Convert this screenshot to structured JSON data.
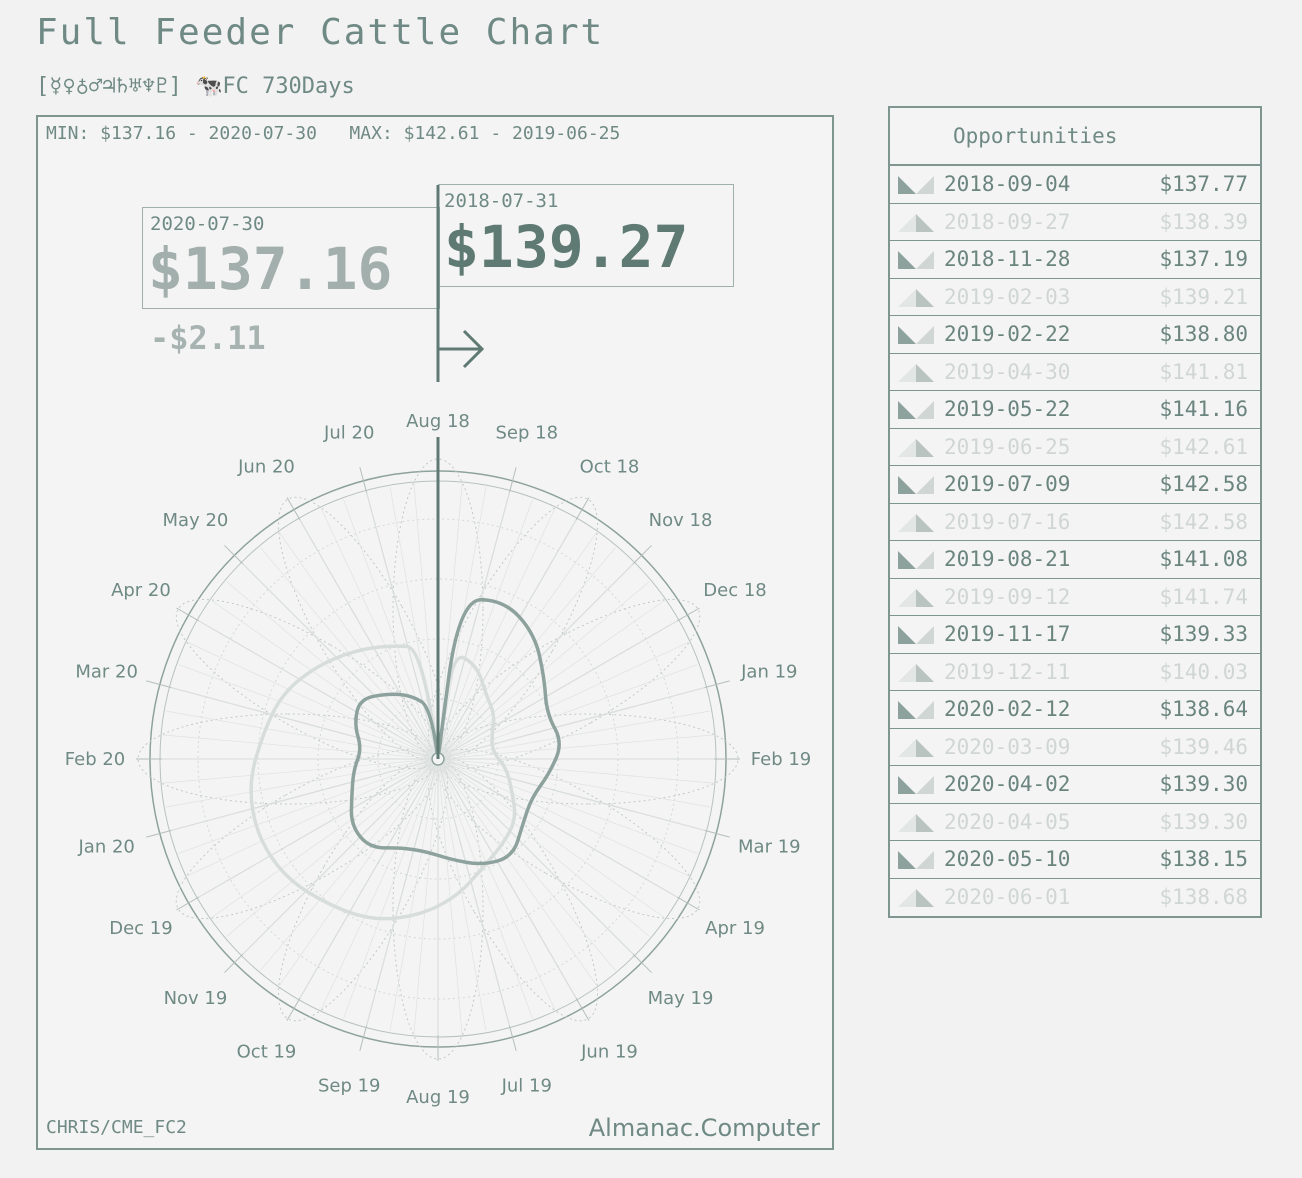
{
  "header": {
    "title": "Full Feeder Cattle Chart",
    "subtitle": "[☿♀♁♂♃♄♅♆♇] 🐄FC 730Days"
  },
  "chart_panel": {
    "minmax": "MIN: $137.16 - 2020-07-30   MAX: $142.61 - 2019-06-25",
    "start": {
      "date": "2018-07-31",
      "price": "$139.27"
    },
    "end": {
      "date": "2020-07-30",
      "price": "$137.16"
    },
    "change": "-$2.11",
    "source": "CHRIS/CME_FC2",
    "brand": "Almanac.Computer"
  },
  "opportunities": {
    "title": "Opportunities",
    "rows": [
      {
        "kind": "buy",
        "date": "2018-09-04",
        "price": "$137.77"
      },
      {
        "kind": "sell",
        "date": "2018-09-27",
        "price": "$138.39"
      },
      {
        "kind": "buy",
        "date": "2018-11-28",
        "price": "$137.19"
      },
      {
        "kind": "sell",
        "date": "2019-02-03",
        "price": "$139.21"
      },
      {
        "kind": "buy",
        "date": "2019-02-22",
        "price": "$138.80"
      },
      {
        "kind": "sell",
        "date": "2019-04-30",
        "price": "$141.81"
      },
      {
        "kind": "buy",
        "date": "2019-05-22",
        "price": "$141.16"
      },
      {
        "kind": "sell",
        "date": "2019-06-25",
        "price": "$142.61"
      },
      {
        "kind": "buy",
        "date": "2019-07-09",
        "price": "$142.58"
      },
      {
        "kind": "sell",
        "date": "2019-07-16",
        "price": "$142.58"
      },
      {
        "kind": "buy",
        "date": "2019-08-21",
        "price": "$141.08"
      },
      {
        "kind": "sell",
        "date": "2019-09-12",
        "price": "$141.74"
      },
      {
        "kind": "buy",
        "date": "2019-11-17",
        "price": "$139.33"
      },
      {
        "kind": "sell",
        "date": "2019-12-11",
        "price": "$140.03"
      },
      {
        "kind": "buy",
        "date": "2020-02-12",
        "price": "$138.64"
      },
      {
        "kind": "sell",
        "date": "2020-03-09",
        "price": "$139.46"
      },
      {
        "kind": "buy",
        "date": "2020-04-02",
        "price": "$139.30"
      },
      {
        "kind": "sell",
        "date": "2020-04-05",
        "price": "$139.30"
      },
      {
        "kind": "buy",
        "date": "2020-05-10",
        "price": "$138.15"
      },
      {
        "kind": "sell",
        "date": "2020-06-01",
        "price": "$138.68"
      }
    ]
  },
  "colors": {
    "ink": "#5e7a73",
    "light": "#cfd6d4",
    "mid": "#8da29d"
  },
  "chart_data": {
    "type": "radial-line",
    "title": "Full Feeder Cattle Chart",
    "months": [
      "Aug 18",
      "Sep 18",
      "Oct 18",
      "Nov 18",
      "Dec 18",
      "Jan 19",
      "Feb 19",
      "Mar 19",
      "Apr 19",
      "May 19",
      "Jun 19",
      "Jul 19",
      "Aug 19",
      "Sep 19",
      "Oct 19",
      "Nov 19",
      "Dec 19",
      "Jan 20",
      "Feb 20",
      "Mar 20",
      "Apr 20",
      "May 20",
      "Jun 20",
      "Jul 20"
    ],
    "series": [
      {
        "values": [
          139.27,
          139.0,
          138.2,
          137.9,
          137.4,
          137.3,
          137.8,
          138.2,
          138.9,
          139.2,
          139.6,
          140.4,
          141.1,
          141.7,
          142.0,
          142.4,
          142.5,
          142.3,
          141.8,
          141.5,
          140.9,
          140.3,
          139.8,
          139.4
        ]
      },
      {
        "values": [
          141.2,
          141.6,
          141.1,
          140.2,
          139.6,
          139.9,
          139.4,
          139.0,
          139.2,
          139.8,
          139.5,
          139.0,
          138.7,
          138.8,
          139.4,
          139.3,
          138.7,
          138.4,
          138.1,
          138.6,
          138.9,
          138.3,
          137.8,
          137.16
        ]
      }
    ],
    "min": {
      "value": 137.16,
      "date": "2020-07-30"
    },
    "max": {
      "value": 142.61,
      "date": "2019-06-25"
    }
  }
}
